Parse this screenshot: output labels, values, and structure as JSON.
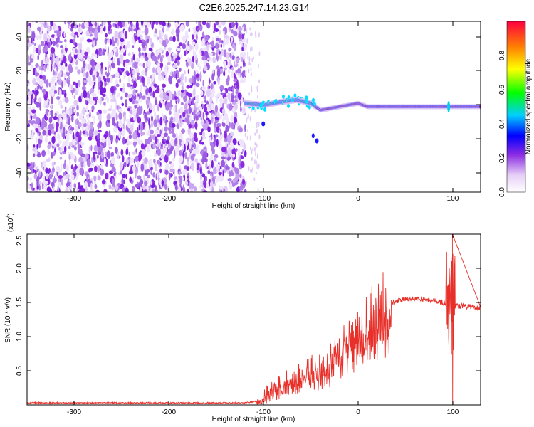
{
  "chart_data": [
    {
      "type": "heatmap",
      "title": "C2E6.2025.247.14.23.G14",
      "xlabel": "Height of straight line (km)",
      "ylabel": "Frequency (Hz)",
      "xlim": [
        -352,
        130
      ],
      "ylim": [
        -50,
        50
      ],
      "x_ticks": [
        "-300",
        "-200",
        "-100",
        "0",
        "100"
      ],
      "y_ticks": [
        "40",
        "20",
        "0",
        "-20",
        "-40"
      ],
      "noise_region_km": [
        -352,
        -120
      ],
      "doppler_track": {
        "x": [
          -120,
          -100,
          -80,
          -65,
          -50,
          -40,
          -30,
          -20,
          -10,
          0,
          10,
          20,
          40,
          60,
          80,
          95,
          100,
          110,
          130
        ],
        "freq_hz": [
          2,
          1,
          3,
          4,
          2,
          -2,
          -1,
          0,
          1,
          2,
          0,
          0,
          0,
          0,
          0,
          0,
          0,
          0,
          0
        ]
      },
      "colorbar": {
        "label": "Normalized spectral amplitude",
        "range": [
          0,
          1
        ],
        "ticks": [
          "0.0",
          "0.2",
          "0.4",
          "0.6",
          "0.8"
        ]
      }
    },
    {
      "type": "line",
      "xlabel": "Height of straight line (km)",
      "ylabel": "SNR (10 * v/v)",
      "y_scale_label": "(x10",
      "y_scale_exp": "4",
      "xlim": [
        -352,
        130
      ],
      "ylim": [
        0,
        2.5
      ],
      "x_ticks": [
        "-300",
        "-200",
        "-100",
        "0",
        "100"
      ],
      "y_ticks": [
        "0.5",
        "1.0",
        "1.5",
        "2.0",
        "2.5"
      ],
      "series": [
        {
          "name": "SNR",
          "color": "#e8302a",
          "x": [
            -352,
            -250,
            -120,
            -105,
            -95,
            -85,
            -75,
            -65,
            -55,
            -45,
            -35,
            -25,
            -15,
            -5,
            5,
            15,
            25,
            35,
            50,
            70,
            90,
            95,
            100,
            103,
            110,
            130
          ],
          "y": [
            0.03,
            0.03,
            0.03,
            0.06,
            0.22,
            0.27,
            0.37,
            0.42,
            0.48,
            0.55,
            0.48,
            0.75,
            0.9,
            1.05,
            1.1,
            1.3,
            1.4,
            1.5,
            1.55,
            1.55,
            1.5,
            1.48,
            1.5,
            1.45,
            1.45,
            1.42
          ]
        }
      ]
    }
  ]
}
